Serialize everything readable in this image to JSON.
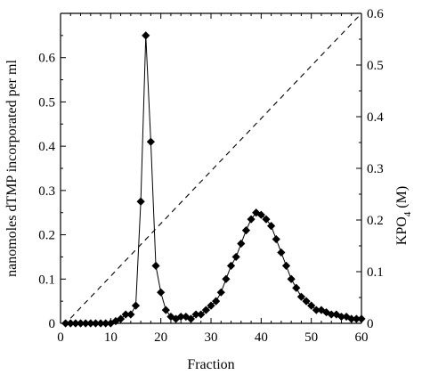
{
  "chart_data": {
    "type": "line",
    "xlabel": "Fraction",
    "ylabel": "nanomoles dTMP incorporated per ml",
    "y2label_main": "KPO",
    "y2label_sub": "4",
    "y2label_unit": "(M)",
    "xlim": [
      0,
      60
    ],
    "ylim": [
      0,
      0.7
    ],
    "y2lim": [
      0,
      0.6
    ],
    "xticks": [
      0,
      10,
      20,
      30,
      40,
      50,
      60
    ],
    "yticks": [
      0,
      0.1,
      0.2,
      0.3,
      0.4,
      0.5,
      0.6
    ],
    "y2ticks": [
      0,
      0.1,
      0.2,
      0.3,
      0.4,
      0.5,
      0.6
    ],
    "grid": false,
    "series": [
      {
        "axis": "left",
        "style": "line-diamond",
        "x": [
          1,
          2,
          3,
          4,
          5,
          6,
          7,
          8,
          9,
          10,
          11,
          12,
          13,
          14,
          15,
          16,
          17,
          18,
          19,
          20,
          21,
          22,
          23,
          24,
          25,
          26,
          27,
          28,
          29,
          30,
          31,
          32,
          33,
          34,
          35,
          36,
          37,
          38,
          39,
          40,
          41,
          42,
          43,
          44,
          45,
          46,
          47,
          48,
          49,
          50,
          51,
          52,
          53,
          54,
          55,
          56,
          57,
          58,
          59,
          60
        ],
        "y": [
          0,
          0,
          0,
          0,
          0,
          0,
          0,
          0,
          0,
          0,
          0.005,
          0.01,
          0.02,
          0.02,
          0.04,
          0.275,
          0.65,
          0.41,
          0.13,
          0.07,
          0.03,
          0.015,
          0.01,
          0.015,
          0.015,
          0.01,
          0.02,
          0.02,
          0.03,
          0.04,
          0.05,
          0.07,
          0.1,
          0.13,
          0.15,
          0.18,
          0.21,
          0.235,
          0.25,
          0.245,
          0.235,
          0.22,
          0.19,
          0.16,
          0.13,
          0.1,
          0.08,
          0.06,
          0.05,
          0.04,
          0.03,
          0.03,
          0.025,
          0.02,
          0.02,
          0.015,
          0.015,
          0.01,
          0.01,
          0.01
        ]
      },
      {
        "axis": "right",
        "style": "dashed",
        "x": [
          2,
          60
        ],
        "y": [
          0.01,
          0.6
        ]
      }
    ]
  }
}
